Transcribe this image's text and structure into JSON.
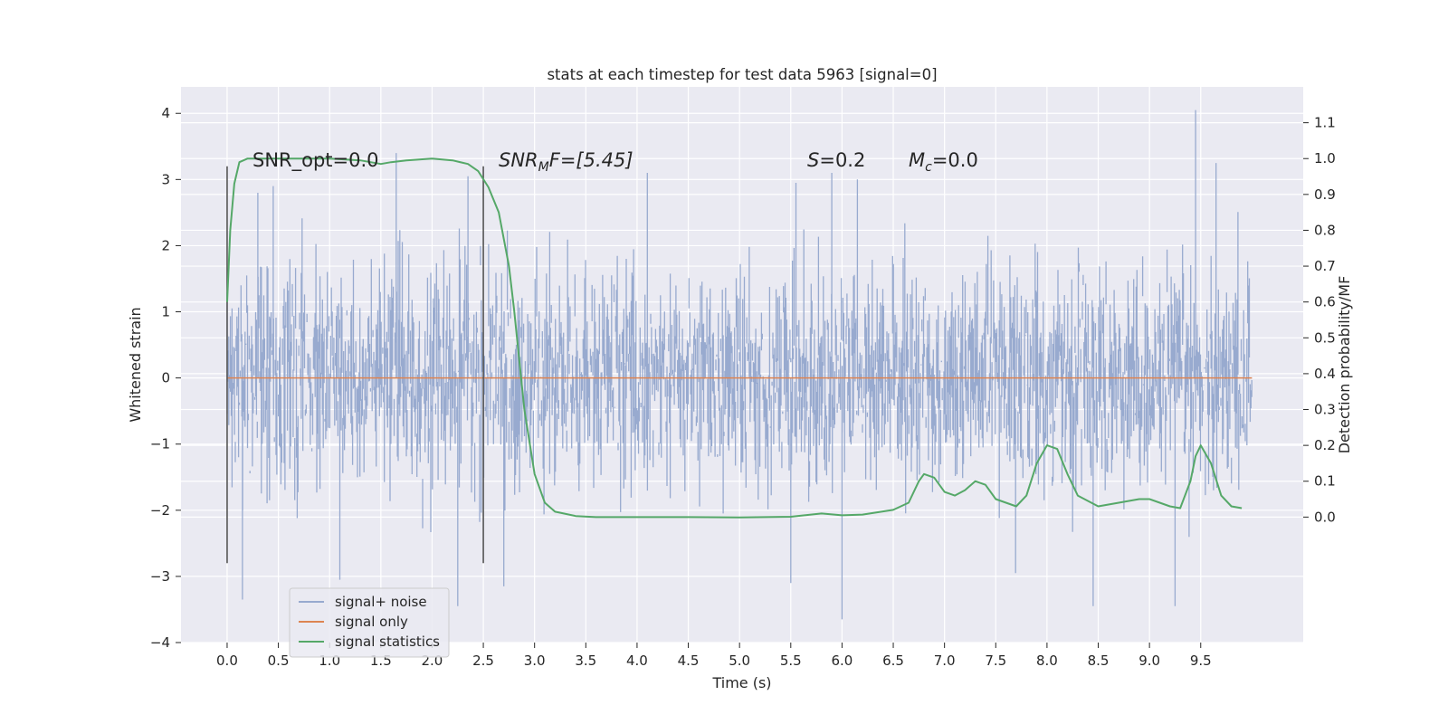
{
  "chart_data": {
    "type": "line",
    "title": "stats at each timestep for test data 5963 [signal=0]",
    "xlabel": "Time (s)",
    "ylabel": "Whitened strain",
    "y2label": "Detection probability/MF",
    "xlim": [
      -0.45,
      10.5
    ],
    "ylim": [
      -4,
      4.4
    ],
    "y2lim": [
      -0.35,
      1.2
    ],
    "xticks": [
      "0.0",
      "0.5",
      "1.0",
      "1.5",
      "2.0",
      "2.5",
      "3.0",
      "3.5",
      "4.0",
      "4.5",
      "5.0",
      "5.5",
      "6.0",
      "6.5",
      "7.0",
      "7.5",
      "8.0",
      "8.5",
      "9.0",
      "9.5"
    ],
    "yticks": [
      "4",
      "3",
      "2",
      "1",
      "0",
      "−1",
      "−2",
      "−3",
      "−4"
    ],
    "y2ticks": [
      "1.1",
      "1.0",
      "0.9",
      "0.8",
      "0.7",
      "0.6",
      "0.5",
      "0.4",
      "0.3",
      "0.2",
      "0.1",
      "0.0"
    ],
    "grid": true,
    "legend_position": "lower-left",
    "annotations": {
      "snr_opt": "SNR_opt=0.0",
      "snr_mf_base": "SNR",
      "snr_mf_sub": "M",
      "snr_mf_rest": "F=[5.45]",
      "s_label": "S",
      "s_value": "=0.2",
      "mc_label": "M",
      "mc_sub": "c",
      "mc_value": "=0.0"
    },
    "vlines": [
      0.0,
      2.5
    ],
    "series": [
      {
        "name": "signal+ noise",
        "color": "#98aacf",
        "kind": "noise",
        "x_range": [
          0.0,
          10.0
        ],
        "std": 0.8,
        "peaks_x": [
          0.3,
          0.45,
          1.65,
          2.35,
          4.1,
          5.55,
          5.9,
          6.15,
          9.45,
          9.65
        ],
        "peaks_y": [
          2.8,
          2.9,
          3.4,
          3.05,
          3.1,
          2.95,
          3.1,
          3.0,
          4.05,
          3.25
        ],
        "troughs_x": [
          0.15,
          1.1,
          2.25,
          2.7,
          5.5,
          6.0,
          8.45,
          9.25
        ],
        "troughs_y": [
          -3.35,
          -3.05,
          -3.45,
          -3.15,
          -3.1,
          -3.65,
          -3.45,
          -3.45
        ]
      },
      {
        "name": "signal only",
        "color": "#dd8452",
        "x": [
          0.0,
          10.0
        ],
        "y": [
          0.0,
          0.0
        ]
      },
      {
        "name": "signal statistics",
        "color": "#55a868",
        "axis": "right",
        "x": [
          0.0,
          0.03,
          0.07,
          0.12,
          0.2,
          0.3,
          0.5,
          1.0,
          1.3,
          1.5,
          1.6,
          1.75,
          2.0,
          2.2,
          2.35,
          2.45,
          2.55,
          2.65,
          2.75,
          2.8,
          2.85,
          2.9,
          3.0,
          3.1,
          3.2,
          3.4,
          3.6,
          4.0,
          4.5,
          5.0,
          5.5,
          5.8,
          6.0,
          6.2,
          6.5,
          6.65,
          6.75,
          6.8,
          6.9,
          7.0,
          7.1,
          7.2,
          7.3,
          7.4,
          7.5,
          7.6,
          7.7,
          7.8,
          7.9,
          8.0,
          8.1,
          8.2,
          8.3,
          8.5,
          8.7,
          8.9,
          9.0,
          9.1,
          9.2,
          9.3,
          9.4,
          9.45,
          9.5,
          9.6,
          9.7,
          9.8,
          9.9
        ],
        "y": [
          0.6,
          0.8,
          0.93,
          0.99,
          1.0,
          1.0,
          1.0,
          1.0,
          0.995,
          0.985,
          0.99,
          0.995,
          1.0,
          0.995,
          0.985,
          0.965,
          0.92,
          0.85,
          0.7,
          0.58,
          0.44,
          0.3,
          0.12,
          0.04,
          0.015,
          0.003,
          0.0,
          0.0,
          0.0,
          -0.001,
          0.001,
          0.01,
          0.005,
          0.007,
          0.02,
          0.04,
          0.1,
          0.12,
          0.11,
          0.07,
          0.06,
          0.075,
          0.1,
          0.09,
          0.05,
          0.04,
          0.03,
          0.06,
          0.15,
          0.2,
          0.19,
          0.12,
          0.06,
          0.03,
          0.04,
          0.05,
          0.05,
          0.04,
          0.03,
          0.025,
          0.1,
          0.17,
          0.2,
          0.15,
          0.06,
          0.03,
          0.025
        ]
      }
    ]
  }
}
